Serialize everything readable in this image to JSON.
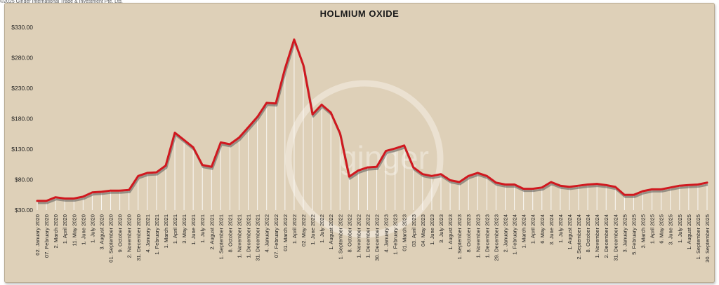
{
  "header": {
    "source_note": "©2025 Ginger International Trade & Investment Pte, Ltd."
  },
  "watermark": {
    "text": "ginger",
    "color": "#efe7da"
  },
  "chart_data": {
    "type": "line",
    "title": "HOLMIUM OXIDE",
    "xlabel": "",
    "ylabel": "",
    "ylim": [
      30,
      330
    ],
    "yticks": [
      30,
      80,
      130,
      180,
      230,
      280,
      330
    ],
    "ytick_labels": [
      "$30.00",
      "$80.00",
      "$130.00",
      "$180.00",
      "$230.00",
      "$280.00",
      "$330.00"
    ],
    "grid": false,
    "line_color": "#d0181f",
    "shadow_color": "#5a5a5a",
    "drop_line_color": "#ffffff",
    "background": "#ded0b8",
    "x_labels": [
      "02. January 2020",
      "07. February 2020",
      "2. March 2020",
      "1. April 2020",
      "11. May 2020",
      "1. June 2020",
      "1. July 2020",
      "3. August 2020",
      "01. September 2020",
      "9. October 2020",
      "2. November 2020",
      "31. December 2020",
      "4. January 2021",
      "1. February 2021",
      "1. March 2021",
      "1. April 2021",
      "3. May 2021",
      "1. June 2021",
      "1. July 2021",
      "2. August 2021",
      "1. September 2021",
      "8. October 2021",
      "1. November 2021",
      "1. December 2021",
      "31. December 2021",
      "4. January 2022",
      "07. February 2022",
      "01. March 2022",
      "1. April 2022",
      "02. May 2022",
      "1. June 2022",
      "1. July 2022",
      "1. August 2022",
      "1. September 2022",
      "8. October 2022",
      "1. November 2022",
      "1. December 2022",
      "30. December 2022",
      "4. January 2023",
      "1. February 2023",
      "01. March 2023",
      "03. April 2023",
      "04. May 2023",
      "1. June 2023",
      "3. July 2023",
      "1. August 2023",
      "1. September 2023",
      "8. October 2023",
      "1. November 2023",
      "1. December 2023",
      "29. December 2023",
      "2. January 2024",
      "1. February 2024",
      "1. March 2024",
      "1. April 2024",
      "6. May 2024",
      "3. June 2024",
      "1. July 2024",
      "1. August 2024",
      "2. September 2024",
      "8. October 2024",
      "1. November 2024",
      "2. December 2024",
      "31. December 2024",
      "3. January 2025",
      "5. February 2025",
      "3. March 2025",
      "1. April 2025",
      "6. May 2025",
      "3. June 2025",
      "1. July 2025",
      "1. August 2025",
      "1. September 2025",
      "30. September 2025"
    ],
    "series": [
      {
        "values": [
          45,
          45,
          51,
          49,
          49,
          52,
          59,
          60,
          62,
          62,
          63,
          86,
          91,
          92,
          103,
          157,
          145,
          133,
          104,
          101,
          141,
          138,
          149,
          166,
          183,
          206,
          205,
          262,
          310,
          268,
          187,
          203,
          190,
          156,
          85,
          95,
          100,
          101,
          127,
          131,
          136,
          100,
          89,
          86,
          89,
          79,
          76,
          86,
          91,
          86,
          75,
          72,
          72,
          65,
          65,
          67,
          76,
          70,
          68,
          70,
          72,
          73,
          71,
          68,
          55,
          55,
          61,
          64,
          64,
          67,
          70,
          71,
          72,
          75
        ]
      }
    ]
  }
}
